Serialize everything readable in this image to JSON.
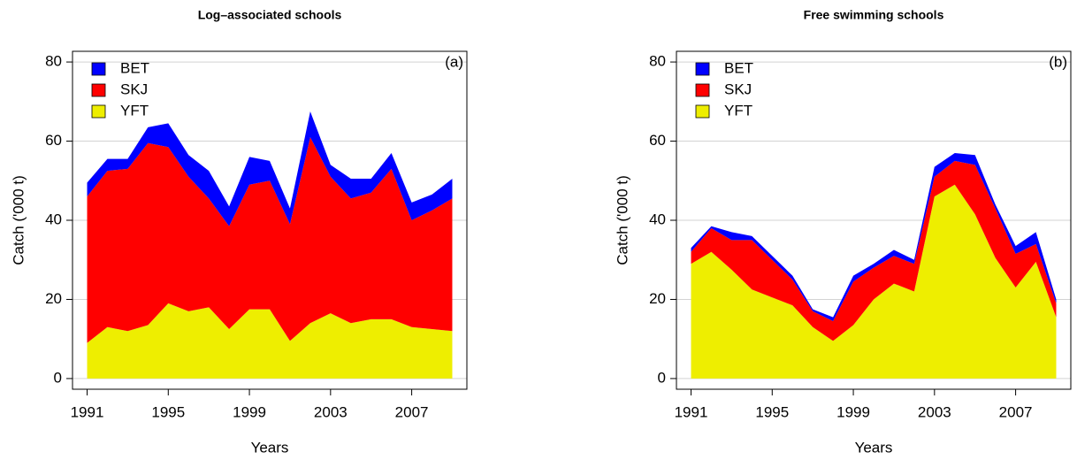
{
  "chart_data": [
    {
      "type": "area",
      "title": "Log–associated schools",
      "annotation": "(a)",
      "x_label": "Years",
      "y_label": "Catch ('000 t)",
      "x": [
        1991,
        1992,
        1993,
        1994,
        1995,
        1996,
        1997,
        1998,
        1999,
        2000,
        2001,
        2002,
        2003,
        2004,
        2005,
        2006,
        2007,
        2008,
        2009
      ],
      "series": [
        {
          "name": "BET",
          "color": "#0000ff",
          "values": [
            3.5,
            3,
            2.5,
            4,
            6,
            5.5,
            7,
            5,
            7,
            5,
            4,
            6.5,
            3,
            5,
            3.5,
            4,
            4.5,
            4,
            5
          ]
        },
        {
          "name": "SKJ",
          "color": "#ff0000",
          "values": [
            37,
            39.5,
            41,
            46,
            39.5,
            34,
            27.5,
            26,
            31.5,
            32.5,
            29.5,
            47,
            34.5,
            31.5,
            32,
            38,
            27,
            30,
            33.5
          ]
        },
        {
          "name": "YFT",
          "color": "#eeee00",
          "values": [
            9,
            13,
            12,
            13.5,
            19,
            17,
            18,
            12.5,
            17.5,
            17.5,
            9.5,
            14,
            16.5,
            14,
            15,
            15,
            13,
            12.5,
            12
          ]
        }
      ],
      "stacked": true,
      "xlim": [
        1990.28,
        2009.72
      ],
      "xticks": [
        1991,
        1995,
        1999,
        2003,
        2007
      ],
      "ylim": [
        -2.7,
        82.7
      ],
      "yticks": [
        0,
        20,
        40,
        60,
        80
      ],
      "grid": true,
      "legend": "top-left"
    },
    {
      "type": "area",
      "title": "Free swimming schools",
      "annotation": "(b)",
      "x_label": "Years",
      "y_label": "Catch ('000 t)",
      "x": [
        1991,
        1992,
        1993,
        1994,
        1995,
        1996,
        1997,
        1998,
        1999,
        2000,
        2001,
        2002,
        2003,
        2004,
        2005,
        2006,
        2007,
        2008,
        2009
      ],
      "series": [
        {
          "name": "BET",
          "color": "#0000ff",
          "values": [
            1,
            0.5,
            2,
            1,
            1,
            1,
            0.5,
            1,
            1.5,
            1,
            1.5,
            1,
            2.5,
            2,
            2.5,
            1,
            2,
            3,
            1
          ]
        },
        {
          "name": "SKJ",
          "color": "#ff0000",
          "values": [
            3,
            6,
            7.5,
            12.5,
            9.5,
            6.5,
            4,
            5,
            11,
            8,
            7,
            7,
            5,
            6,
            12.5,
            12.5,
            8.5,
            4.5,
            3.5
          ]
        },
        {
          "name": "YFT",
          "color": "#eeee00",
          "values": [
            29,
            32,
            27.5,
            22.5,
            20.5,
            18.5,
            13,
            9.5,
            13.5,
            20,
            24,
            22,
            46,
            49,
            41.5,
            30.5,
            23,
            29.5,
            15.5
          ]
        }
      ],
      "stacked": true,
      "xlim": [
        1990.28,
        2009.72
      ],
      "xticks": [
        1991,
        1995,
        1999,
        2003,
        2007
      ],
      "ylim": [
        -2.7,
        82.7
      ],
      "yticks": [
        0,
        20,
        40,
        60,
        80
      ],
      "grid": true,
      "legend": "top-left"
    }
  ]
}
